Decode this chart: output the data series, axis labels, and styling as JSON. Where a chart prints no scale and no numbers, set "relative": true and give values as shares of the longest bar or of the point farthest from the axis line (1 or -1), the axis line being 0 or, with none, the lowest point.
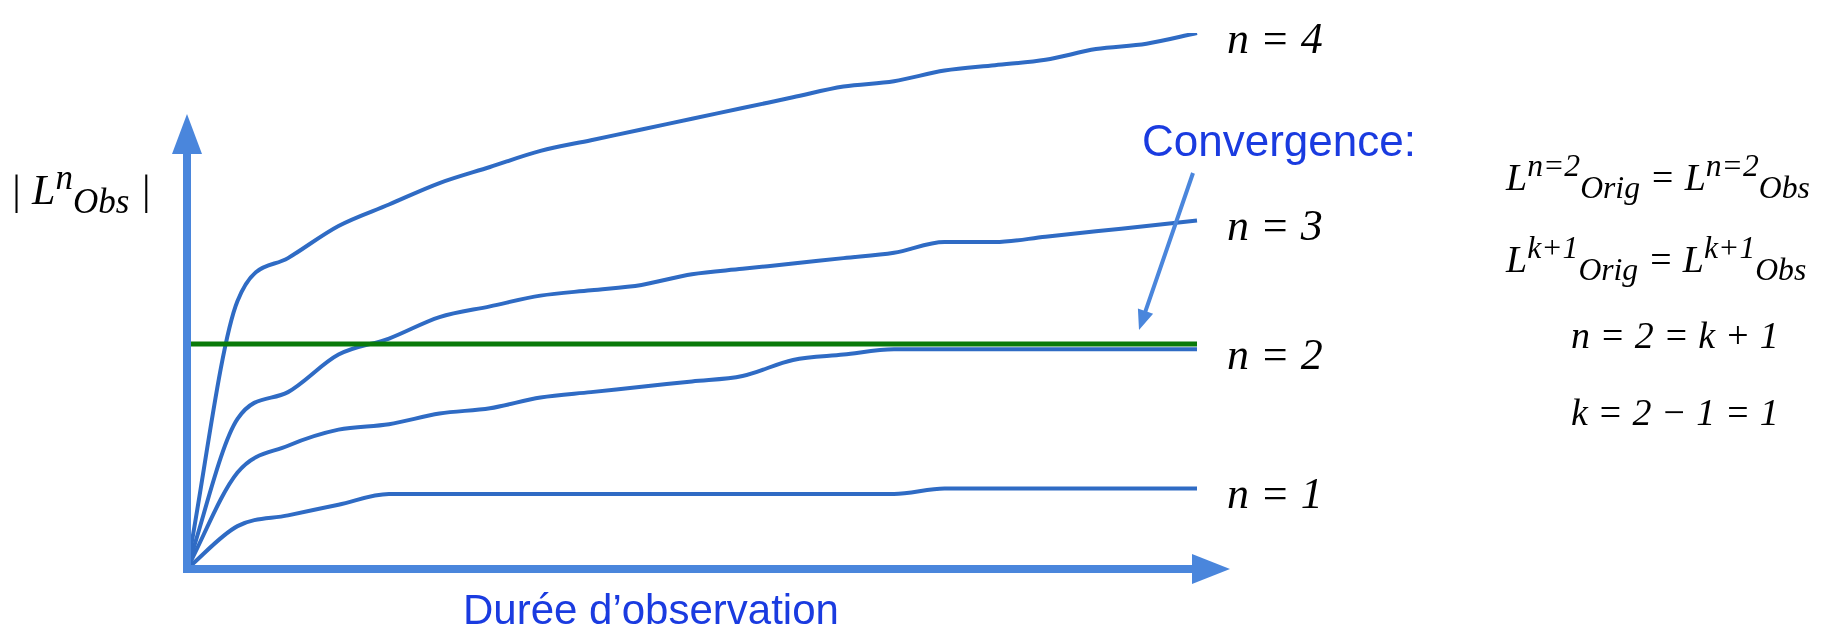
{
  "chart_data": {
    "type": "line",
    "relative": true,
    "xlabel": "Durée d’observation",
    "ylabel": "| L$^{n}$$_{Obs}$ |",
    "categories": [
      null,
      null,
      null,
      null,
      null,
      null,
      null,
      null,
      null,
      null,
      null,
      null,
      null,
      null,
      null,
      null,
      null,
      null,
      null,
      null,
      null
    ],
    "series": [
      {
        "name": "n = 4",
        "color": "#2f6bc4",
        "values": [
          0,
          0.5,
          0.58,
          0.64,
          0.68,
          0.72,
          0.75,
          0.78,
          0.8,
          0.82,
          0.84,
          0.86,
          0.88,
          0.9,
          0.91,
          0.93,
          0.94,
          0.95,
          0.97,
          0.98,
          1
        ]
      },
      {
        "name": "n = 3",
        "color": "#2f6bc4",
        "values": [
          0,
          0.28,
          0.33,
          0.4,
          0.43,
          0.47,
          0.49,
          0.51,
          0.52,
          0.53,
          0.55,
          0.56,
          0.57,
          0.58,
          0.59,
          0.61,
          0.61,
          0.62,
          0.63,
          0.64,
          0.65
        ]
      },
      {
        "name": "n = 2",
        "color": "#2f6bc4",
        "values": [
          0,
          0.18,
          0.23,
          0.26,
          0.27,
          0.29,
          0.3,
          0.32,
          0.33,
          0.34,
          0.35,
          0.36,
          0.39,
          0.4,
          0.41,
          0.41,
          0.41,
          0.41,
          0.41,
          0.41,
          0.41
        ]
      },
      {
        "name": "n = 1",
        "color": "#2f6bc4",
        "values": [
          0,
          0.08,
          0.1,
          0.12,
          0.14,
          0.14,
          0.14,
          0.14,
          0.14,
          0.14,
          0.14,
          0.14,
          0.14,
          0.14,
          0.14,
          0.15,
          0.15,
          0.15,
          0.15,
          0.15,
          0.15
        ]
      }
    ],
    "ref_lines": [
      {
        "axis": "y",
        "value": 0.42,
        "color": "#0a7a0a"
      }
    ],
    "annotations": [
      "Convergence:",
      "L$^{n=2}$$_{Orig}$ = L$^{n=2}$$_{Obs}$",
      "L$^{k+1}$$_{Orig}$ = L$^{k+1}$$_{Obs}$",
      "n = 2 = k + 1",
      "k = 2 − 1 = 1"
    ],
    "legend": false,
    "marker": "none",
    "line_style": "solid"
  }
}
